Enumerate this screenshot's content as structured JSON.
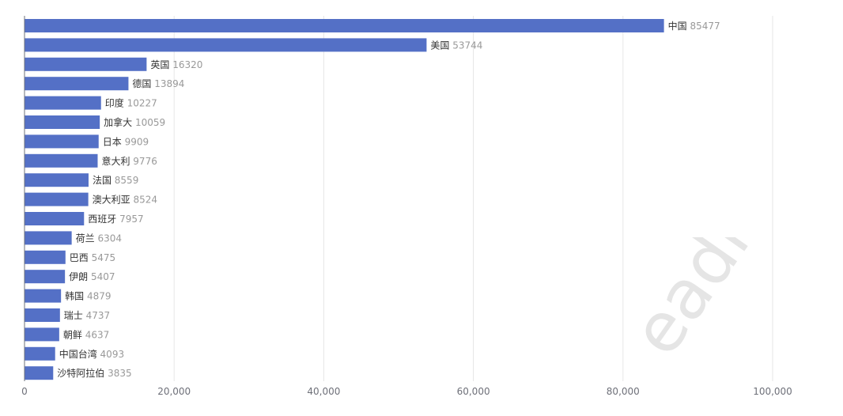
{
  "chart_data": {
    "type": "bar",
    "orientation": "horizontal",
    "categories": [
      "中国",
      "美国",
      "英国",
      "德国",
      "印度",
      "加拿大",
      "日本",
      "意大利",
      "法国",
      "澳大利亚",
      "西班牙",
      "荷兰",
      "巴西",
      "伊朗",
      "韩国",
      "瑞士",
      "朝鲜",
      "中国台湾",
      "沙特阿拉伯"
    ],
    "values": [
      85477,
      53744,
      16320,
      13894,
      10227,
      10059,
      9909,
      9776,
      8559,
      8524,
      7957,
      6304,
      5475,
      5407,
      4879,
      4737,
      4637,
      4093,
      3835
    ],
    "xlim": [
      0,
      100000
    ],
    "xticks": [
      0,
      20000,
      40000,
      60000,
      80000,
      100000
    ],
    "xtick_labels": [
      "0",
      "20,000",
      "40,000",
      "60,000",
      "80,000",
      "100,000"
    ],
    "grid": true,
    "bar_color": "#5470c6",
    "label_color": "#333333",
    "value_color": "#999999"
  },
  "watermark": "eading"
}
